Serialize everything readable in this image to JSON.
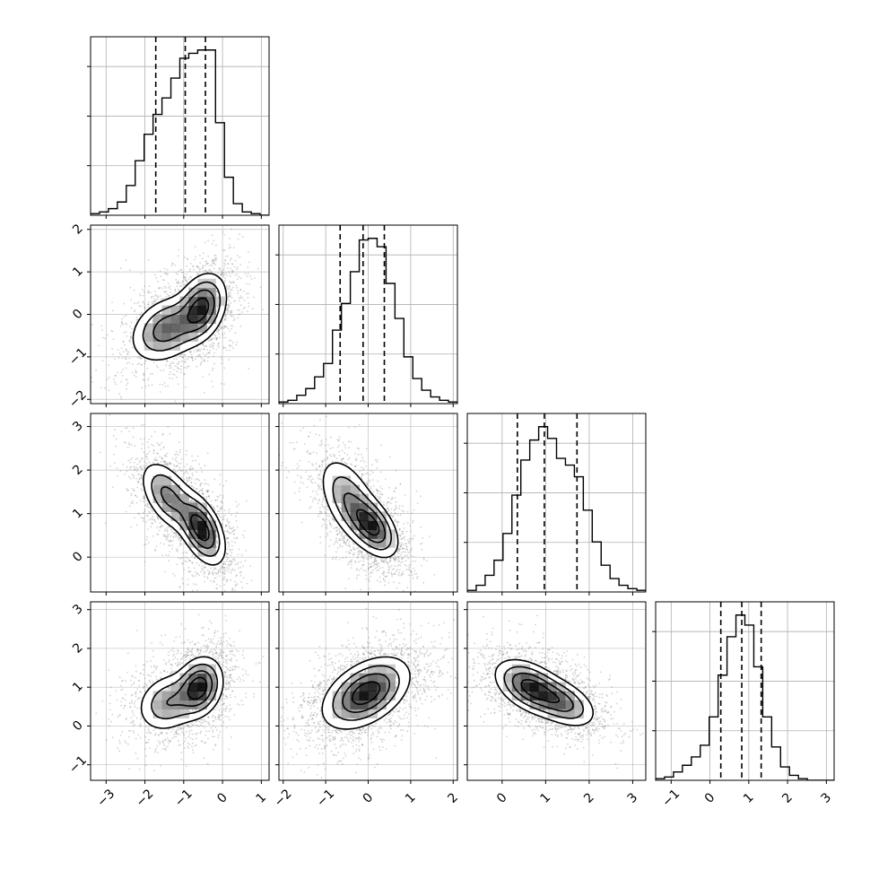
{
  "chart_data": {
    "type": "corner",
    "n_params": 4,
    "colors": {
      "contour": "#000000",
      "points": "#7f7f7f",
      "grid": "#b0b0b0"
    },
    "params": [
      {
        "index": 0,
        "range": [
          -3.4,
          1.2
        ],
        "ticks": [
          -3,
          -2,
          -1,
          0,
          1
        ],
        "tick_labels": [
          "−3",
          "−2",
          "−1",
          "0",
          "1"
        ],
        "quantiles": [
          -1.72,
          -0.96,
          -0.44
        ]
      },
      {
        "index": 1,
        "range": [
          -2.1,
          2.1
        ],
        "ticks": [
          -2,
          -1,
          0,
          1,
          2
        ],
        "tick_labels": [
          "−2",
          "−1",
          "0",
          "1",
          "2"
        ],
        "quantiles": [
          -0.66,
          -0.12,
          0.38
        ]
      },
      {
        "index": 2,
        "range": [
          -0.8,
          3.3
        ],
        "ticks": [
          0,
          1,
          2,
          3
        ],
        "tick_labels": [
          "0",
          "1",
          "2",
          "3"
        ],
        "quantiles": [
          0.35,
          0.97,
          1.72
        ]
      },
      {
        "index": 3,
        "range": [
          -1.4,
          3.2
        ],
        "ticks": [
          -1,
          0,
          1,
          2,
          3
        ],
        "tick_labels": [
          "−1",
          "0",
          "1",
          "2",
          "3"
        ],
        "quantiles": [
          0.28,
          0.82,
          1.32
        ]
      }
    ],
    "histograms": [
      {
        "param": 0,
        "bin_edges": [
          -3.4,
          -3.17,
          -2.94,
          -2.71,
          -2.48,
          -2.25,
          -2.02,
          -1.79,
          -1.56,
          -1.33,
          -1.1,
          -0.87,
          -0.64,
          -0.41,
          -0.18,
          0.05,
          0.28,
          0.51,
          0.74,
          0.97,
          1.2
        ],
        "counts": [
          1,
          2,
          4,
          8,
          18,
          33,
          49,
          61,
          71,
          83,
          95,
          98,
          100,
          100,
          56,
          23,
          7,
          2,
          1,
          0
        ],
        "y_gridlines": [
          0.3,
          0.6,
          0.9
        ]
      },
      {
        "param": 1,
        "bin_edges": [
          -2.1,
          -1.89,
          -1.68,
          -1.47,
          -1.26,
          -1.05,
          -0.84,
          -0.63,
          -0.42,
          -0.21,
          0.0,
          0.21,
          0.42,
          0.63,
          0.84,
          1.05,
          1.26,
          1.47,
          1.68,
          1.89,
          2.1
        ],
        "counts": [
          1,
          2,
          5,
          9,
          16,
          24,
          44,
          60,
          79,
          98,
          99,
          94,
          72,
          51,
          28,
          15,
          8,
          4,
          2,
          1
        ],
        "y_gridlines": [
          0.3,
          0.6,
          0.9
        ]
      },
      {
        "param": 2,
        "bin_edges": [
          -0.8,
          -0.595,
          -0.39,
          -0.185,
          0.02,
          0.225,
          0.43,
          0.635,
          0.84,
          1.045,
          1.25,
          1.455,
          1.66,
          1.865,
          2.07,
          2.275,
          2.48,
          2.685,
          2.89,
          3.095,
          3.3
        ],
        "counts": [
          1,
          4,
          10,
          19,
          35,
          58,
          79,
          91,
          99,
          92,
          80,
          76,
          69,
          49,
          30,
          16,
          8,
          4,
          2,
          1
        ],
        "y_gridlines": [
          0.3,
          0.6,
          0.9
        ]
      },
      {
        "param": 3,
        "bin_edges": [
          -1.4,
          -1.17,
          -0.94,
          -0.71,
          -0.48,
          -0.25,
          -0.02,
          0.21,
          0.44,
          0.67,
          0.9,
          1.13,
          1.36,
          1.59,
          1.82,
          2.05,
          2.28,
          2.51,
          2.74,
          2.97,
          3.2
        ],
        "counts": [
          1,
          2,
          5,
          9,
          14,
          21,
          38,
          63,
          86,
          99,
          93,
          68,
          38,
          20,
          8,
          3,
          1,
          0,
          0,
          0
        ],
        "y_gridlines": [
          0.3,
          0.6,
          0.9
        ]
      }
    ],
    "pairs": [
      {
        "x_param": 0,
        "y_param": 1,
        "corr": 0.3,
        "modes": [
          {
            "mx": -1.45,
            "my": -0.35,
            "sx": 0.45,
            "sy": 0.38,
            "w": 1.0
          },
          {
            "mx": -0.55,
            "my": 0.15,
            "sx": 0.32,
            "sy": 0.4,
            "w": 1.3
          }
        ]
      },
      {
        "x_param": 0,
        "y_param": 2,
        "corr": -0.5,
        "modes": [
          {
            "mx": -1.4,
            "my": 1.4,
            "sx": 0.35,
            "sy": 0.4,
            "w": 0.8
          },
          {
            "mx": -0.55,
            "my": 0.65,
            "sx": 0.3,
            "sy": 0.4,
            "w": 1.3
          }
        ]
      },
      {
        "x_param": 1,
        "y_param": 2,
        "corr": -0.5,
        "modes": [
          {
            "mx": -0.45,
            "my": 1.3,
            "sx": 0.35,
            "sy": 0.5,
            "w": 0.8
          },
          {
            "mx": 0.1,
            "my": 0.7,
            "sx": 0.3,
            "sy": 0.35,
            "w": 1.3
          }
        ]
      },
      {
        "x_param": 0,
        "y_param": 3,
        "corr": 0.2,
        "modes": [
          {
            "mx": -1.4,
            "my": 0.6,
            "sx": 0.4,
            "sy": 0.38,
            "w": 0.7
          },
          {
            "mx": -0.6,
            "my": 1.0,
            "sx": 0.3,
            "sy": 0.38,
            "w": 1.3
          }
        ]
      },
      {
        "x_param": 1,
        "y_param": 3,
        "corr": 0.45,
        "modes": [
          {
            "mx": -0.05,
            "my": 0.85,
            "sx": 0.5,
            "sy": 0.45,
            "w": 1.0
          }
        ]
      },
      {
        "x_param": 2,
        "y_param": 3,
        "corr": -0.45,
        "modes": [
          {
            "mx": 0.65,
            "my": 1.0,
            "sx": 0.4,
            "sy": 0.35,
            "w": 1.2
          },
          {
            "mx": 1.4,
            "my": 0.6,
            "sx": 0.38,
            "sy": 0.32,
            "w": 0.8
          }
        ]
      }
    ],
    "grid": true,
    "contour_levels": 4
  }
}
